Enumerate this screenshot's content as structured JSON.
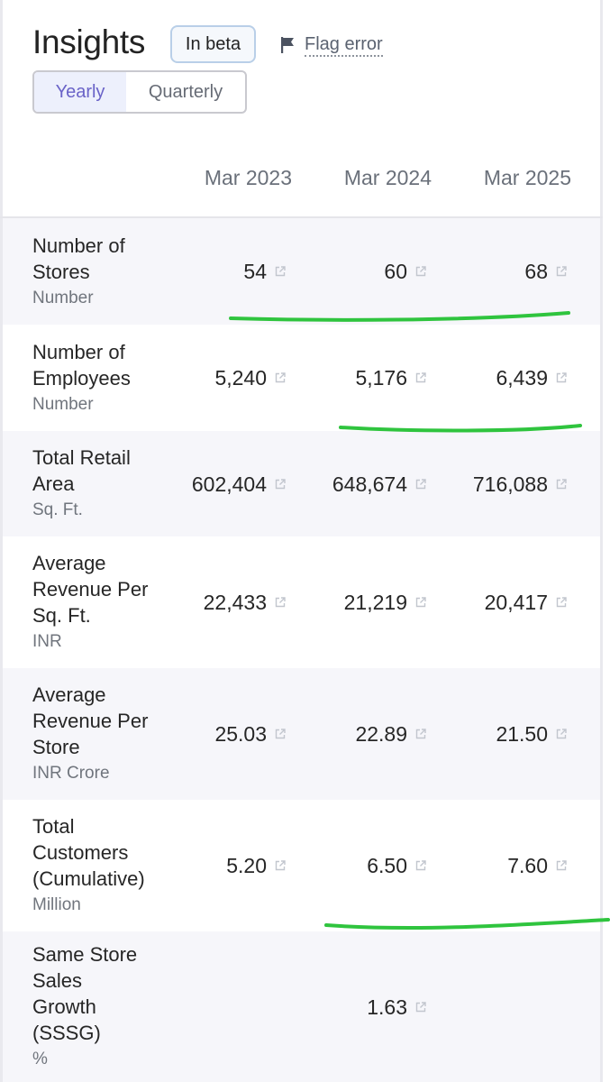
{
  "header": {
    "title": "Insights",
    "beta_badge": "In beta",
    "flag_error": "Flag error"
  },
  "period_toggle": {
    "selected": "Yearly",
    "other": "Quarterly"
  },
  "columns": [
    "Mar 2023",
    "Mar 2024",
    "Mar 2025"
  ],
  "rows": [
    {
      "label_lines": [
        "Number of",
        "Stores"
      ],
      "unit": "Number",
      "values": [
        "54",
        "60",
        "68"
      ],
      "underlined": true
    },
    {
      "label_lines": [
        "Number of",
        "Employees"
      ],
      "unit": "Number",
      "values": [
        "5,240",
        "5,176",
        "6,439"
      ],
      "underlined": true
    },
    {
      "label_lines": [
        "Total Retail",
        "Area"
      ],
      "unit": "Sq. Ft.",
      "values": [
        "602,404",
        "648,674",
        "716,088"
      ],
      "underlined": false
    },
    {
      "label_lines": [
        "Average",
        "Revenue Per",
        "Sq. Ft."
      ],
      "unit": "INR",
      "values": [
        "22,433",
        "21,219",
        "20,417"
      ],
      "underlined": false
    },
    {
      "label_lines": [
        "Average",
        "Revenue Per",
        "Store"
      ],
      "unit": "INR Crore",
      "values": [
        "25.03",
        "22.89",
        "21.50"
      ],
      "underlined": false
    },
    {
      "label_lines": [
        "Total",
        "Customers",
        "(Cumulative)"
      ],
      "unit": "Million",
      "values": [
        "5.20",
        "6.50",
        "7.60"
      ],
      "underlined": true
    },
    {
      "label_lines": [
        "Same Store",
        "Sales",
        "Growth",
        "(SSSG)"
      ],
      "unit": "%",
      "values": [
        "",
        "1.63",
        ""
      ],
      "underlined": false
    }
  ],
  "icons": {
    "flag": "flag-icon",
    "external_link": "external-link-icon"
  },
  "colors": {
    "accent": "#6a63c8",
    "annotation": "#2fc43e",
    "row_shade": "#f6f6fa"
  }
}
